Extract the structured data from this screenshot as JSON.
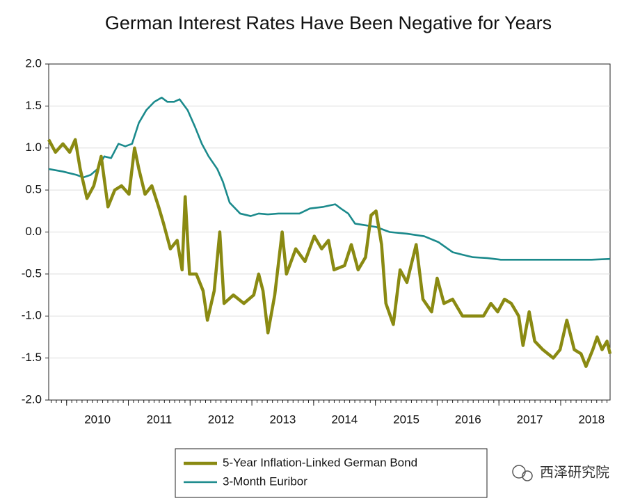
{
  "chart_data": {
    "type": "line",
    "title": "German Interest Rates Have Been Negative for Years",
    "xlim": [
      2009.71,
      2018.8
    ],
    "xticks": [
      {
        "value": 2010,
        "label": "2010"
      },
      {
        "value": 2011,
        "label": "2011"
      },
      {
        "value": 2012,
        "label": "2012"
      },
      {
        "value": 2013,
        "label": "2013"
      },
      {
        "value": 2014,
        "label": "2014"
      },
      {
        "value": 2015,
        "label": "2015"
      },
      {
        "value": 2016,
        "label": "2016"
      },
      {
        "value": 2017,
        "label": "2017"
      },
      {
        "value": 2018,
        "label": "2018"
      }
    ],
    "ylim": [
      -2.0,
      2.0
    ],
    "yticks": [
      {
        "value": 2.0,
        "label": "2.0"
      },
      {
        "value": 1.5,
        "label": "1.5"
      },
      {
        "value": 1.0,
        "label": "1.0"
      },
      {
        "value": 0.5,
        "label": "0.5"
      },
      {
        "value": 0.0,
        "label": "0.0"
      },
      {
        "value": -0.5,
        "label": "-0.5"
      },
      {
        "value": -1.0,
        "label": "-1.0"
      },
      {
        "value": -1.5,
        "label": "-1.5"
      },
      {
        "value": -2.0,
        "label": "-2.0"
      }
    ],
    "grid": true,
    "legend": "bottom",
    "series": [
      {
        "name": "5-Year Inflation-Linked German Bond",
        "color": "#8a8a12",
        "x": [
          2009.71,
          2009.82,
          2009.94,
          2010.05,
          2010.14,
          2010.22,
          2010.33,
          2010.44,
          2010.56,
          2010.67,
          2010.78,
          2010.89,
          2011.01,
          2011.1,
          2011.17,
          2011.27,
          2011.38,
          2011.49,
          2011.57,
          2011.68,
          2011.79,
          2011.87,
          2011.92,
          2011.99,
          2012.1,
          2012.21,
          2012.28,
          2012.39,
          2012.48,
          2012.55,
          2012.7,
          2012.87,
          2013.03,
          2013.11,
          2013.18,
          2013.26,
          2013.37,
          2013.49,
          2013.56,
          2013.71,
          2013.86,
          2014.01,
          2014.13,
          2014.24,
          2014.33,
          2014.5,
          2014.61,
          2014.72,
          2014.84,
          2014.93,
          2015.01,
          2015.1,
          2015.17,
          2015.29,
          2015.4,
          2015.51,
          2015.66,
          2015.77,
          2015.91,
          2016.0,
          2016.11,
          2016.25,
          2016.41,
          2016.58,
          2016.75,
          2016.87,
          2016.98,
          2017.09,
          2017.2,
          2017.32,
          2017.39,
          2017.49,
          2017.58,
          2017.71,
          2017.88,
          2017.99,
          2018.1,
          2018.22,
          2018.33,
          2018.41,
          2018.52,
          2018.59,
          2018.67,
          2018.75,
          2018.8
        ],
        "values": [
          1.1,
          0.95,
          1.05,
          0.95,
          1.1,
          0.75,
          0.4,
          0.55,
          0.9,
          0.3,
          0.5,
          0.55,
          0.45,
          1.0,
          0.75,
          0.45,
          0.55,
          0.3,
          0.1,
          -0.2,
          -0.1,
          -0.45,
          0.42,
          -0.5,
          -0.5,
          -0.7,
          -1.05,
          -0.7,
          0.0,
          -0.85,
          -0.75,
          -0.85,
          -0.75,
          -0.5,
          -0.7,
          -1.2,
          -0.75,
          0.0,
          -0.5,
          -0.2,
          -0.35,
          -0.05,
          -0.2,
          -0.1,
          -0.45,
          -0.4,
          -0.15,
          -0.45,
          -0.3,
          0.2,
          0.25,
          -0.15,
          -0.85,
          -1.1,
          -0.45,
          -0.6,
          -0.15,
          -0.8,
          -0.95,
          -0.55,
          -0.85,
          -0.8,
          -1.0,
          -1.0,
          -1.0,
          -0.85,
          -0.95,
          -0.8,
          -0.85,
          -1.0,
          -1.35,
          -0.95,
          -1.3,
          -1.4,
          -1.5,
          -1.4,
          -1.05,
          -1.4,
          -1.45,
          -1.6,
          -1.4,
          -1.25,
          -1.4,
          -1.3,
          -1.45
        ]
      },
      {
        "name": "3-Month Euribor",
        "color": "#1b8a8c",
        "x": [
          2009.71,
          2009.94,
          2010.16,
          2010.27,
          2010.39,
          2010.5,
          2010.61,
          2010.72,
          2010.84,
          2010.95,
          2011.06,
          2011.17,
          2011.29,
          2011.42,
          2011.54,
          2011.63,
          2011.74,
          2011.83,
          2011.96,
          2012.08,
          2012.19,
          2012.3,
          2012.44,
          2012.53,
          2012.64,
          2012.81,
          2012.98,
          2013.11,
          2013.26,
          2013.43,
          2013.77,
          2013.94,
          2014.16,
          2014.35,
          2014.44,
          2014.56,
          2014.67,
          2014.84,
          2015.01,
          2015.23,
          2015.51,
          2015.79,
          2016.02,
          2016.25,
          2016.41,
          2016.58,
          2016.81,
          2017.03,
          2017.48,
          2017.94,
          2018.5,
          2018.8
        ],
        "values": [
          0.75,
          0.72,
          0.68,
          0.65,
          0.68,
          0.75,
          0.9,
          0.88,
          1.05,
          1.02,
          1.05,
          1.3,
          1.45,
          1.55,
          1.6,
          1.55,
          1.55,
          1.58,
          1.45,
          1.25,
          1.05,
          0.9,
          0.75,
          0.6,
          0.35,
          0.22,
          0.19,
          0.22,
          0.21,
          0.22,
          0.22,
          0.28,
          0.3,
          0.33,
          0.28,
          0.22,
          0.1,
          0.08,
          0.06,
          0.0,
          -0.02,
          -0.05,
          -0.12,
          -0.24,
          -0.27,
          -0.3,
          -0.31,
          -0.33,
          -0.33,
          -0.33,
          -0.33,
          -0.32
        ]
      }
    ],
    "watermark": "西泽研究院"
  }
}
